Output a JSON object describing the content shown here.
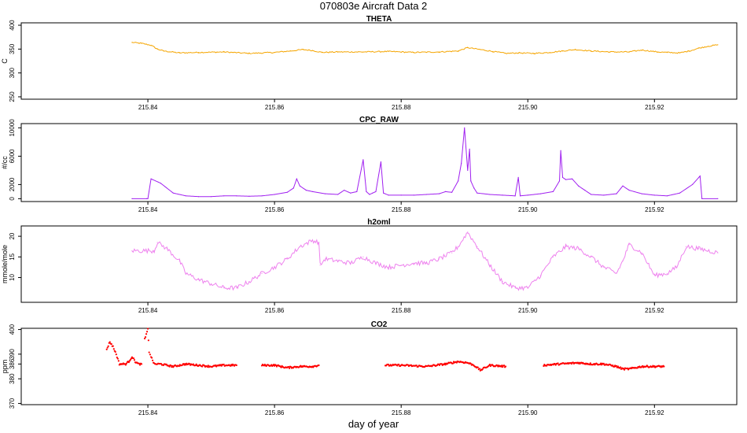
{
  "figure": {
    "title": "070803e   Aircraft Data 2",
    "xlabel": "day of year"
  },
  "chart_data": [
    {
      "type": "line",
      "title": "THETA",
      "ylabel": "C",
      "color": "#f5a500",
      "xlim": [
        215.82,
        215.933
      ],
      "ylim": [
        245,
        405
      ],
      "xticks": [
        215.84,
        215.86,
        215.88,
        215.9,
        215.92
      ],
      "xtick_labels": [
        "215.84",
        "215.86",
        "215.88",
        "215.90",
        "215.92"
      ],
      "yticks": [
        250,
        300,
        350,
        400
      ],
      "ytick_labels": [
        "250",
        "300",
        "350",
        "400"
      ],
      "grid": false,
      "series": [
        {
          "x": [
            215.8375,
            215.839,
            215.8405,
            215.8415,
            215.8425,
            215.845,
            215.848,
            215.852,
            215.856,
            215.86,
            215.8625,
            215.8645,
            215.866,
            215.8675,
            215.87,
            215.874,
            215.878,
            215.882,
            215.886,
            215.889,
            215.8905,
            215.8925,
            215.8945,
            215.8965,
            215.8985,
            215.901,
            215.9035,
            215.9055,
            215.9075,
            215.91,
            215.913,
            215.916,
            215.918,
            215.9205,
            215.922,
            215.924,
            215.9255,
            215.927,
            215.9285,
            215.93
          ],
          "y": [
            364,
            362,
            358,
            350,
            346,
            342,
            343,
            344,
            341,
            343,
            346,
            349,
            347,
            343,
            344,
            344,
            345,
            343,
            344,
            346,
            353,
            349,
            345,
            341,
            342,
            341,
            343,
            346,
            349,
            346,
            344,
            344,
            348,
            344,
            343,
            342,
            346,
            352,
            356,
            359
          ]
        }
      ]
    },
    {
      "type": "line",
      "title": "CPC_RAW",
      "ylabel": "#/cc",
      "color": "#a020f0",
      "xlim": [
        215.82,
        215.933
      ],
      "ylim": [
        -400,
        10600
      ],
      "xticks": [
        215.84,
        215.86,
        215.88,
        215.9,
        215.92
      ],
      "xtick_labels": [
        "215.84",
        "215.86",
        "215.88",
        "215.90",
        "215.92"
      ],
      "yticks": [
        0,
        2000,
        6000,
        10000
      ],
      "ytick_labels": [
        "0",
        "2000",
        "6000",
        "10000"
      ],
      "grid": false,
      "series": [
        {
          "x": [
            215.8375,
            215.8398,
            215.84,
            215.8405,
            215.842,
            215.844,
            215.846,
            215.848,
            215.85,
            215.852,
            215.854,
            215.856,
            215.858,
            215.86,
            215.862,
            215.863,
            215.8635,
            215.864,
            215.865,
            215.866,
            215.868,
            215.87,
            215.871,
            215.872,
            215.873,
            215.874,
            215.8745,
            215.875,
            215.8755,
            215.876,
            215.8768,
            215.8772,
            215.878,
            215.88,
            215.882,
            215.884,
            215.886,
            215.887,
            215.888,
            215.889,
            215.8895,
            215.89,
            215.8905,
            215.8908,
            215.891,
            215.8915,
            215.892,
            215.894,
            215.896,
            215.898,
            215.8985,
            215.8988,
            215.9,
            215.902,
            215.904,
            215.905,
            215.9052,
            215.9055,
            215.906,
            215.907,
            215.908,
            215.909,
            215.91,
            215.912,
            215.914,
            215.915,
            215.916,
            215.918,
            215.92,
            215.922,
            215.924,
            215.926,
            215.927,
            215.9272,
            215.9275,
            215.93
          ],
          "y": [
            0,
            0,
            0,
            2800,
            2200,
            800,
            400,
            300,
            300,
            400,
            400,
            350,
            400,
            600,
            900,
            1500,
            2800,
            1800,
            1200,
            1000,
            700,
            600,
            1200,
            800,
            1000,
            5500,
            1000,
            600,
            800,
            1000,
            5200,
            800,
            500,
            500,
            500,
            600,
            700,
            1000,
            900,
            2500,
            5000,
            10000,
            4000,
            7000,
            2500,
            1500,
            800,
            600,
            500,
            400,
            3000,
            400,
            500,
            700,
            1000,
            2500,
            6800,
            3000,
            2700,
            2800,
            1800,
            1200,
            600,
            500,
            700,
            1800,
            1200,
            700,
            500,
            400,
            800,
            2000,
            3000,
            3200,
            0,
            0
          ]
        }
      ]
    },
    {
      "type": "line",
      "title": "h2oml",
      "ylabel": "mmole/mole",
      "color": "#ee82ee",
      "xlim": [
        215.82,
        215.933
      ],
      "ylim": [
        4,
        22.5
      ],
      "xticks": [
        215.84,
        215.86,
        215.88,
        215.9,
        215.92
      ],
      "xtick_labels": [
        "215.84",
        "215.86",
        "215.88",
        "215.90",
        "215.92"
      ],
      "yticks": [
        10,
        15,
        20
      ],
      "ytick_labels": [
        "10",
        "15",
        "20"
      ],
      "grid": false,
      "series": [
        {
          "x": [
            215.8375,
            215.841,
            215.8415,
            215.843,
            215.845,
            215.846,
            215.848,
            215.85,
            215.852,
            215.854,
            215.856,
            215.858,
            215.86,
            215.862,
            215.864,
            215.866,
            215.867,
            215.8672,
            215.868,
            215.87,
            215.872,
            215.874,
            215.876,
            215.878,
            215.88,
            215.882,
            215.884,
            215.886,
            215.888,
            215.889,
            215.8905,
            215.892,
            215.894,
            215.896,
            215.898,
            215.9,
            215.902,
            215.904,
            215.906,
            215.908,
            215.91,
            215.912,
            215.914,
            215.915,
            215.916,
            215.918,
            215.92,
            215.922,
            215.9235,
            215.925,
            215.927,
            215.93
          ],
          "y": [
            16.5,
            16.5,
            18.5,
            17,
            14,
            11,
            9.5,
            8.5,
            7.5,
            7.5,
            9,
            11,
            12.5,
            14.5,
            17.5,
            19,
            18.5,
            13,
            14.5,
            14,
            13.5,
            15,
            13.5,
            12.5,
            13,
            13.5,
            13.5,
            14.5,
            16,
            17.5,
            21,
            17.5,
            13,
            9,
            7.5,
            7.5,
            10.5,
            15,
            17.5,
            17,
            15,
            12.5,
            11,
            14,
            18,
            16,
            10.5,
            11,
            12.5,
            17.5,
            17,
            16
          ]
        }
      ]
    },
    {
      "type": "scatter",
      "title": "CO2",
      "ylabel": "ppm",
      "color": "#ff0000",
      "xlim": [
        215.82,
        215.933
      ],
      "ylim": [
        369.5,
        400.5
      ],
      "xticks": [
        215.84,
        215.86,
        215.88,
        215.9,
        215.92
      ],
      "xtick_labels": [
        "215.84",
        "215.86",
        "215.88",
        "215.90",
        "215.92"
      ],
      "yticks": [
        370,
        380,
        386,
        390,
        400
      ],
      "ytick_labels": [
        "370",
        "380",
        "386",
        "390",
        "400"
      ],
      "grid": false,
      "series": [
        {
          "segments": [
            {
              "x": [
                215.8335,
                215.834,
                215.8345,
                215.835,
                215.8355,
                215.836,
                215.8365,
                215.837,
                215.8375,
                215.838,
                215.8385,
                215.839
              ],
              "y": [
                392,
                395,
                393,
                390,
                386,
                386,
                386,
                387,
                389,
                387,
                386,
                386
              ]
            },
            {
              "x": [
                215.8395,
                215.84,
                215.8402,
                215.8405,
                215.841,
                215.842,
                215.844,
                215.846,
                215.848,
                215.85,
                215.852,
                215.854
              ],
              "y": [
                396,
                400,
                391,
                389,
                386,
                386,
                385,
                386,
                385.5,
                385,
                385.5,
                385.5
              ]
            },
            {
              "x": [
                215.858,
                215.86,
                215.862,
                215.864,
                215.866,
                215.867
              ],
              "y": [
                385.5,
                385.5,
                384.5,
                385,
                385,
                385.5
              ]
            },
            {
              "x": [
                215.8775,
                215.88,
                215.884,
                215.887,
                215.889,
                215.8905,
                215.8915,
                215.8925,
                215.894,
                215.8965
              ],
              "y": [
                385.5,
                385.5,
                385,
                386,
                387,
                386.5,
                385.5,
                383.5,
                385.5,
                385
              ]
            },
            {
              "x": [
                215.9025,
                215.905,
                215.908,
                215.91,
                215.912,
                215.914,
                215.915,
                215.916,
                215.918,
                215.92,
                215.9215
              ],
              "y": [
                385.5,
                386,
                386.5,
                386,
                386,
                385,
                384,
                384,
                385,
                385,
                385
              ]
            }
          ]
        }
      ]
    }
  ]
}
